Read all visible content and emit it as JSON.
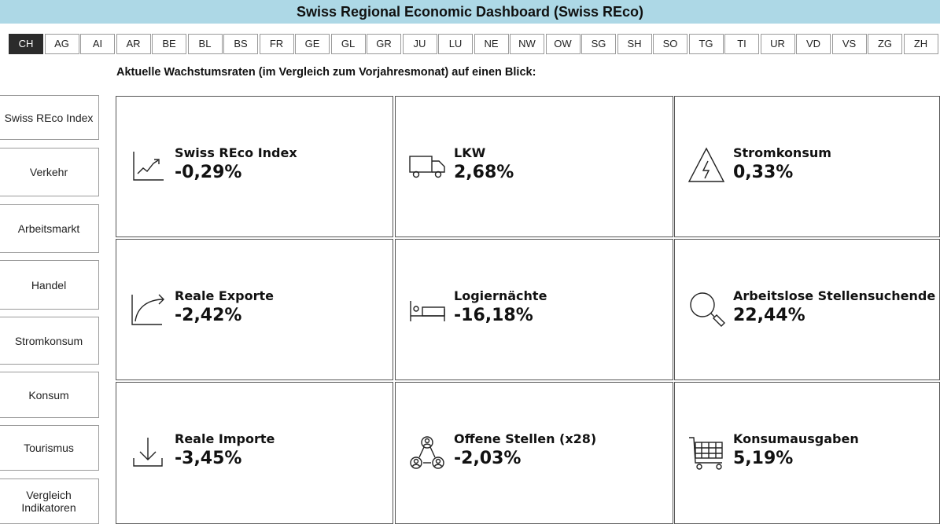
{
  "header": {
    "title": "Swiss Regional Economic Dashboard (Swiss REco)"
  },
  "tabs": [
    "CH",
    "AG",
    "AI",
    "AR",
    "BE",
    "BL",
    "BS",
    "FR",
    "GE",
    "GL",
    "GR",
    "JU",
    "LU",
    "NE",
    "NW",
    "OW",
    "SG",
    "SH",
    "SO",
    "TG",
    "TI",
    "UR",
    "VD",
    "VS",
    "ZG",
    "ZH"
  ],
  "active_tab": "CH",
  "subtitle": "Aktuelle Wachstumsraten (im Vergleich zum Vorjahresmonat) auf einen Blick:",
  "sidebar": {
    "items": [
      {
        "label": "Swiss REco Index"
      },
      {
        "label": "Verkehr"
      },
      {
        "label": "Arbeitsmarkt"
      },
      {
        "label": "Handel"
      },
      {
        "label": "Stromkonsum"
      },
      {
        "label": "Konsum"
      },
      {
        "label": "Tourismus"
      },
      {
        "label": "Vergleich Indikatoren"
      }
    ]
  },
  "tiles": [
    {
      "label": "Swiss REco Index",
      "value": "-0,29%",
      "icon": "trend-chart-icon"
    },
    {
      "label": "LKW",
      "value": "2,68%",
      "icon": "truck-icon"
    },
    {
      "label": "Stromkonsum",
      "value": "0,33%",
      "icon": "high-voltage-icon"
    },
    {
      "label": "Reale Exporte",
      "value": "-2,42%",
      "icon": "export-arrow-icon"
    },
    {
      "label": "Logiernächte",
      "value": "-16,18%",
      "icon": "bed-icon"
    },
    {
      "label": "Arbeitslose Stellensuchende",
      "value": "22,44%",
      "icon": "magnifier-icon"
    },
    {
      "label": "Reale Importe",
      "value": "-3,45%",
      "icon": "download-icon"
    },
    {
      "label": "Offene Stellen (x28)",
      "value": "-2,03%",
      "icon": "people-network-icon"
    },
    {
      "label": "Konsumausgaben",
      "value": "5,19%",
      "icon": "shopping-cart-icon"
    }
  ]
}
